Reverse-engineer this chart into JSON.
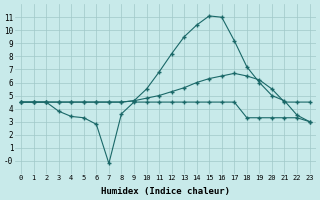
{
  "xlabel": "Humidex (Indice chaleur)",
  "background_color": "#c8eaea",
  "grid_color": "#a0c8c8",
  "line_color": "#1a6868",
  "xlim": [
    -0.5,
    23.5
  ],
  "ylim": [
    -1,
    12
  ],
  "yticks": [
    0,
    1,
    2,
    3,
    4,
    5,
    6,
    7,
    8,
    9,
    10,
    11
  ],
  "ytick_labels": [
    "-0",
    "1",
    "2",
    "3",
    "4",
    "5",
    "6",
    "7",
    "8",
    "9",
    "10",
    "11"
  ],
  "xticks": [
    0,
    1,
    2,
    3,
    4,
    5,
    6,
    7,
    8,
    9,
    10,
    11,
    12,
    13,
    14,
    15,
    16,
    17,
    18,
    19,
    20,
    21,
    22,
    23
  ],
  "line_bell": [
    4.5,
    4.5,
    4.5,
    4.5,
    4.5,
    4.5,
    4.5,
    4.5,
    4.5,
    4.6,
    5.5,
    6.8,
    8.2,
    9.5,
    10.4,
    11.1,
    11.0,
    9.2,
    7.2,
    6.0,
    5.0,
    4.6,
    3.5,
    3.0
  ],
  "line_medium": [
    4.5,
    4.5,
    4.5,
    4.5,
    4.5,
    4.5,
    4.5,
    4.5,
    4.5,
    4.6,
    4.8,
    5.0,
    5.3,
    5.6,
    6.0,
    6.3,
    6.5,
    6.7,
    6.5,
    6.2,
    5.5,
    4.5,
    4.5,
    4.5
  ],
  "line_dip": [
    4.5,
    4.5,
    4.5,
    3.8,
    3.4,
    3.3,
    2.8,
    -0.2,
    3.6,
    4.5,
    4.5,
    4.5,
    4.5,
    4.5,
    4.5,
    4.5,
    4.5,
    4.5,
    3.3,
    3.3,
    3.3,
    3.3,
    3.3,
    3.0
  ],
  "marker": "+"
}
